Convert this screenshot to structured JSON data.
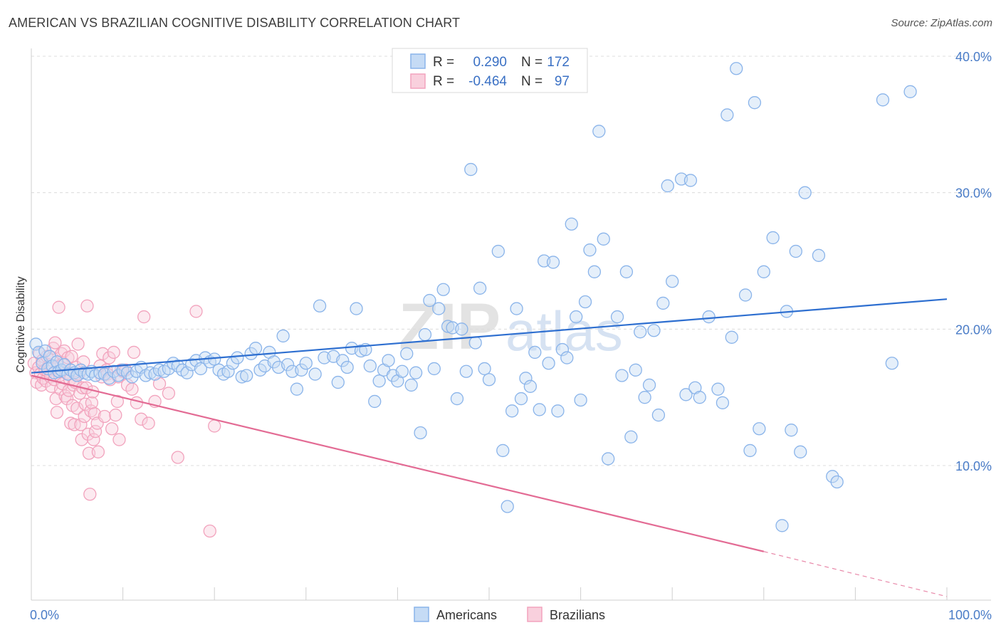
{
  "title": "AMERICAN VS BRAZILIAN COGNITIVE DISABILITY CORRELATION CHART",
  "source": "Source: ZipAtlas.com",
  "watermark": {
    "zip": "ZIP",
    "atlas": "atlas"
  },
  "chart_data": {
    "type": "scatter",
    "xlabel": "",
    "ylabel": "Cognitive Disability",
    "xlim": [
      0,
      100
    ],
    "ylim": [
      0,
      41
    ],
    "x_tick_labels": [
      {
        "value": 0,
        "label": "0.0%"
      },
      {
        "value": 100,
        "label": "100.0%"
      }
    ],
    "y_tick_labels": [
      {
        "value": 10,
        "label": "10.0%"
      },
      {
        "value": 20,
        "label": "20.0%"
      },
      {
        "value": 30,
        "label": "30.0%"
      },
      {
        "value": 40,
        "label": "40.0%"
      }
    ],
    "grid": true,
    "legend_position": "top-center",
    "stats_legend": [
      {
        "r_label": "R =",
        "r_value": "0.290",
        "n_label": "N =",
        "n_value": "172"
      },
      {
        "r_label": "R =",
        "r_value": "-0.464",
        "n_label": "N =",
        "n_value": "97"
      }
    ],
    "series": [
      {
        "name": "Americans",
        "color": "#8ab4ea",
        "fill": "#c5dbf5",
        "trend_color": "#2e6fd0",
        "trend": {
          "x0": 0,
          "y0": 16.8,
          "x1": 100,
          "y1": 22.2
        },
        "points": [
          [
            0.5,
            18.9
          ],
          [
            0.8,
            18.3
          ],
          [
            1.2,
            17.5
          ],
          [
            1.5,
            18.4
          ],
          [
            1.8,
            17.1
          ],
          [
            2.0,
            18.0
          ],
          [
            2.3,
            17.3
          ],
          [
            2.5,
            16.8
          ],
          [
            2.8,
            17.6
          ],
          [
            3.0,
            16.9
          ],
          [
            3.3,
            17.0
          ],
          [
            3.6,
            17.4
          ],
          [
            4.0,
            16.7
          ],
          [
            4.3,
            17.0
          ],
          [
            4.7,
            16.8
          ],
          [
            5.0,
            16.6
          ],
          [
            5.4,
            17.0
          ],
          [
            5.8,
            16.8
          ],
          [
            6.2,
            16.7
          ],
          [
            6.6,
            16.9
          ],
          [
            7.0,
            16.6
          ],
          [
            7.5,
            16.8
          ],
          [
            8.0,
            16.7
          ],
          [
            8.5,
            16.4
          ],
          [
            9.0,
            16.9
          ],
          [
            9.5,
            16.6
          ],
          [
            10.0,
            17.0
          ],
          [
            10.5,
            16.8
          ],
          [
            11.0,
            16.5
          ],
          [
            11.5,
            16.9
          ],
          [
            12.0,
            17.2
          ],
          [
            12.5,
            16.6
          ],
          [
            13.0,
            16.8
          ],
          [
            13.5,
            16.7
          ],
          [
            14.0,
            17.0
          ],
          [
            14.5,
            16.9
          ],
          [
            15.0,
            17.1
          ],
          [
            15.5,
            17.5
          ],
          [
            16.0,
            17.3
          ],
          [
            16.5,
            17.0
          ],
          [
            17.0,
            16.8
          ],
          [
            17.5,
            17.4
          ],
          [
            18.0,
            17.7
          ],
          [
            18.5,
            17.1
          ],
          [
            19.0,
            17.9
          ],
          [
            19.5,
            17.6
          ],
          [
            20.0,
            17.8
          ],
          [
            20.5,
            17.0
          ],
          [
            21.0,
            16.7
          ],
          [
            21.5,
            16.9
          ],
          [
            22.0,
            17.5
          ],
          [
            22.5,
            17.9
          ],
          [
            23.0,
            16.5
          ],
          [
            23.5,
            16.6
          ],
          [
            24.0,
            18.2
          ],
          [
            24.5,
            18.6
          ],
          [
            25.0,
            17.0
          ],
          [
            25.5,
            17.3
          ],
          [
            26.0,
            18.3
          ],
          [
            26.5,
            17.6
          ],
          [
            27.0,
            17.2
          ],
          [
            27.5,
            19.5
          ],
          [
            28.0,
            17.4
          ],
          [
            28.5,
            16.9
          ],
          [
            29.0,
            15.6
          ],
          [
            29.5,
            17.0
          ],
          [
            30.0,
            17.5
          ],
          [
            31.0,
            16.7
          ],
          [
            31.5,
            21.7
          ],
          [
            32.0,
            17.9
          ],
          [
            33.0,
            18.0
          ],
          [
            33.5,
            16.1
          ],
          [
            34.0,
            17.7
          ],
          [
            34.5,
            17.2
          ],
          [
            35.0,
            18.6
          ],
          [
            35.5,
            21.5
          ],
          [
            36.0,
            18.4
          ],
          [
            36.5,
            18.5
          ],
          [
            37.0,
            17.3
          ],
          [
            37.5,
            14.7
          ],
          [
            38.0,
            16.2
          ],
          [
            38.5,
            17.0
          ],
          [
            39.0,
            17.7
          ],
          [
            39.5,
            16.6
          ],
          [
            40.0,
            16.2
          ],
          [
            40.5,
            16.9
          ],
          [
            41.0,
            18.2
          ],
          [
            41.5,
            15.9
          ],
          [
            42.0,
            16.8
          ],
          [
            42.5,
            12.4
          ],
          [
            43.0,
            19.6
          ],
          [
            43.5,
            22.1
          ],
          [
            44.0,
            17.1
          ],
          [
            44.5,
            21.5
          ],
          [
            45.0,
            22.9
          ],
          [
            45.5,
            20.2
          ],
          [
            46.0,
            20.1
          ],
          [
            46.5,
            14.9
          ],
          [
            47.0,
            20.0
          ],
          [
            47.5,
            16.9
          ],
          [
            48.0,
            31.7
          ],
          [
            48.5,
            19.0
          ],
          [
            49.0,
            23.0
          ],
          [
            49.5,
            17.1
          ],
          [
            50.0,
            16.3
          ],
          [
            51.0,
            25.7
          ],
          [
            51.5,
            11.1
          ],
          [
            52.0,
            7.0
          ],
          [
            52.5,
            14.0
          ],
          [
            53.0,
            21.5
          ],
          [
            53.5,
            14.9
          ],
          [
            54.0,
            16.4
          ],
          [
            54.5,
            15.8
          ],
          [
            55.0,
            18.3
          ],
          [
            55.5,
            14.1
          ],
          [
            56.0,
            25.0
          ],
          [
            56.5,
            17.5
          ],
          [
            57.0,
            24.9
          ],
          [
            57.5,
            14.0
          ],
          [
            58.0,
            18.5
          ],
          [
            58.5,
            17.9
          ],
          [
            59.0,
            27.7
          ],
          [
            59.5,
            20.9
          ],
          [
            60.0,
            14.8
          ],
          [
            60.5,
            22.0
          ],
          [
            61.0,
            25.8
          ],
          [
            61.5,
            24.2
          ],
          [
            62.0,
            34.5
          ],
          [
            62.5,
            26.6
          ],
          [
            63.0,
            10.5
          ],
          [
            64.0,
            20.9
          ],
          [
            64.5,
            16.6
          ],
          [
            65.0,
            24.2
          ],
          [
            65.5,
            12.1
          ],
          [
            66.0,
            17.0
          ],
          [
            66.5,
            19.8
          ],
          [
            67.0,
            15.0
          ],
          [
            67.5,
            15.9
          ],
          [
            68.0,
            19.9
          ],
          [
            68.5,
            13.7
          ],
          [
            69.0,
            21.9
          ],
          [
            69.5,
            30.5
          ],
          [
            70.0,
            23.5
          ],
          [
            71.0,
            31.0
          ],
          [
            71.5,
            15.2
          ],
          [
            72.0,
            30.9
          ],
          [
            72.5,
            15.7
          ],
          [
            73.0,
            15.0
          ],
          [
            74.0,
            20.9
          ],
          [
            75.0,
            15.6
          ],
          [
            75.5,
            14.6
          ],
          [
            76.0,
            35.7
          ],
          [
            76.5,
            19.4
          ],
          [
            77.0,
            39.1
          ],
          [
            78.0,
            22.5
          ],
          [
            78.5,
            11.1
          ],
          [
            79.0,
            36.6
          ],
          [
            79.5,
            12.7
          ],
          [
            80.0,
            24.2
          ],
          [
            81.0,
            26.7
          ],
          [
            82.0,
            5.6
          ],
          [
            82.5,
            21.3
          ],
          [
            83.0,
            12.6
          ],
          [
            83.5,
            25.7
          ],
          [
            84.0,
            11.0
          ],
          [
            84.5,
            30.0
          ],
          [
            86.0,
            25.4
          ],
          [
            87.5,
            9.2
          ],
          [
            88.0,
            8.8
          ],
          [
            93.0,
            36.8
          ],
          [
            94.0,
            17.5
          ],
          [
            96.0,
            37.4
          ]
        ]
      },
      {
        "name": "Brazilians",
        "color": "#f2a3bd",
        "fill": "#f9d0dd",
        "trend_color": "#e36b94",
        "trend": {
          "x0": 0,
          "y0": 16.6,
          "x1": 80,
          "y1": 3.7,
          "dash_x1": 100,
          "dash_y1": 0.4
        },
        "points": [
          [
            0.3,
            17.5
          ],
          [
            0.5,
            16.8
          ],
          [
            0.6,
            16.1
          ],
          [
            0.8,
            17.2
          ],
          [
            0.9,
            18.2
          ],
          [
            1.0,
            16.7
          ],
          [
            1.1,
            15.9
          ],
          [
            1.2,
            17.7
          ],
          [
            1.3,
            16.4
          ],
          [
            1.5,
            17.0
          ],
          [
            1.6,
            16.2
          ],
          [
            1.7,
            18.0
          ],
          [
            1.8,
            16.9
          ],
          [
            2.0,
            17.4
          ],
          [
            2.1,
            16.5
          ],
          [
            2.2,
            15.8
          ],
          [
            2.3,
            17.9
          ],
          [
            2.4,
            18.6
          ],
          [
            2.5,
            16.3
          ],
          [
            2.6,
            19.0
          ],
          [
            2.7,
            14.9
          ],
          [
            2.8,
            13.9
          ],
          [
            2.9,
            17.3
          ],
          [
            3.0,
            21.6
          ],
          [
            3.1,
            16.6
          ],
          [
            3.2,
            15.6
          ],
          [
            3.3,
            18.2
          ],
          [
            3.4,
            16.0
          ],
          [
            3.5,
            17.5
          ],
          [
            3.6,
            18.4
          ],
          [
            3.7,
            15.1
          ],
          [
            3.8,
            16.8
          ],
          [
            3.9,
            14.9
          ],
          [
            4.0,
            17.9
          ],
          [
            4.1,
            15.5
          ],
          [
            4.2,
            16.3
          ],
          [
            4.3,
            13.1
          ],
          [
            4.4,
            18.0
          ],
          [
            4.5,
            14.4
          ],
          [
            4.6,
            15.9
          ],
          [
            4.7,
            13.0
          ],
          [
            4.8,
            16.1
          ],
          [
            4.9,
            17.2
          ],
          [
            5.0,
            14.2
          ],
          [
            5.1,
            18.9
          ],
          [
            5.2,
            16.7
          ],
          [
            5.3,
            15.3
          ],
          [
            5.4,
            13.0
          ],
          [
            5.5,
            11.9
          ],
          [
            5.6,
            15.7
          ],
          [
            5.7,
            17.6
          ],
          [
            5.8,
            13.6
          ],
          [
            5.9,
            14.5
          ],
          [
            6.0,
            15.7
          ],
          [
            6.1,
            21.7
          ],
          [
            6.2,
            12.3
          ],
          [
            6.3,
            10.9
          ],
          [
            6.4,
            7.9
          ],
          [
            6.5,
            14.0
          ],
          [
            6.6,
            14.6
          ],
          [
            6.7,
            15.4
          ],
          [
            6.8,
            11.9
          ],
          [
            6.9,
            13.8
          ],
          [
            7.0,
            12.5
          ],
          [
            7.2,
            13.1
          ],
          [
            7.3,
            11.0
          ],
          [
            7.5,
            17.3
          ],
          [
            7.7,
            16.5
          ],
          [
            7.8,
            18.2
          ],
          [
            8.0,
            13.6
          ],
          [
            8.2,
            17.0
          ],
          [
            8.3,
            16.7
          ],
          [
            8.5,
            17.9
          ],
          [
            8.6,
            16.3
          ],
          [
            8.8,
            12.7
          ],
          [
            9.0,
            18.3
          ],
          [
            9.2,
            13.7
          ],
          [
            9.4,
            14.7
          ],
          [
            9.5,
            16.5
          ],
          [
            9.6,
            11.9
          ],
          [
            9.8,
            17.0
          ],
          [
            10.0,
            16.9
          ],
          [
            10.3,
            17.0
          ],
          [
            10.5,
            15.9
          ],
          [
            11.0,
            15.6
          ],
          [
            11.2,
            18.3
          ],
          [
            11.5,
            14.6
          ],
          [
            12.0,
            13.4
          ],
          [
            12.3,
            20.9
          ],
          [
            12.8,
            13.1
          ],
          [
            13.5,
            14.7
          ],
          [
            14.0,
            16.0
          ],
          [
            15.0,
            15.3
          ],
          [
            16.0,
            10.6
          ],
          [
            18.0,
            21.3
          ],
          [
            19.5,
            5.2
          ],
          [
            20.0,
            12.9
          ]
        ]
      }
    ],
    "bottom_legend": [
      {
        "label": "Americans"
      },
      {
        "label": "Brazilians"
      }
    ]
  }
}
